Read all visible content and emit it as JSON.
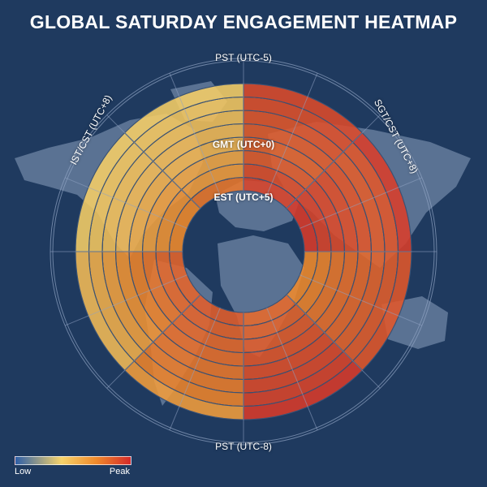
{
  "title": "GLOBAL SATURDAY ENGAGEMENT HEATMAP",
  "labels": {
    "top": "PST (UTC-5)",
    "bottom": "PST (UTC-8)",
    "left": "IST/CST (UTC+8)",
    "right": "SGT/CST (UTC+8)",
    "inner1": "GMT (UTC+0)",
    "inner2": "EST (UTC+5)"
  },
  "legend": {
    "low": "Low",
    "peak": "Peak"
  },
  "colors": {
    "background": "#1f3a5f",
    "map": "#8aa0bd",
    "grid": "#8fa3c2",
    "low": "#2e5fa8",
    "mid": "#f6d36b",
    "high": "#f08a2b",
    "peak": "#d42a2a"
  },
  "chart_data": {
    "type": "heatmap",
    "title": "GLOBAL SATURDAY ENGAGEMENT HEATMAP",
    "layout": "polar",
    "sectors": 8,
    "rings": 8,
    "scale": [
      0,
      1
    ],
    "legend": "bottom-left",
    "values": [
      [
        0.92,
        0.88,
        0.84,
        0.82,
        0.84,
        0.86,
        0.88,
        0.9
      ],
      [
        0.95,
        0.92,
        0.9,
        0.88,
        0.86,
        0.84,
        0.86,
        0.94
      ],
      [
        0.7,
        0.72,
        0.76,
        0.78,
        0.8,
        0.82,
        0.84,
        0.86
      ],
      [
        0.8,
        0.82,
        0.84,
        0.86,
        0.88,
        0.9,
        0.92,
        0.95
      ],
      [
        0.84,
        0.82,
        0.8,
        0.78,
        0.76,
        0.74,
        0.72,
        0.62
      ],
      [
        0.82,
        0.8,
        0.76,
        0.72,
        0.66,
        0.6,
        0.55,
        0.5
      ],
      [
        0.7,
        0.66,
        0.6,
        0.55,
        0.5,
        0.48,
        0.45,
        0.42
      ],
      [
        0.76,
        0.62,
        0.58,
        0.52,
        0.5,
        0.48,
        0.45,
        0.42
      ]
    ]
  }
}
